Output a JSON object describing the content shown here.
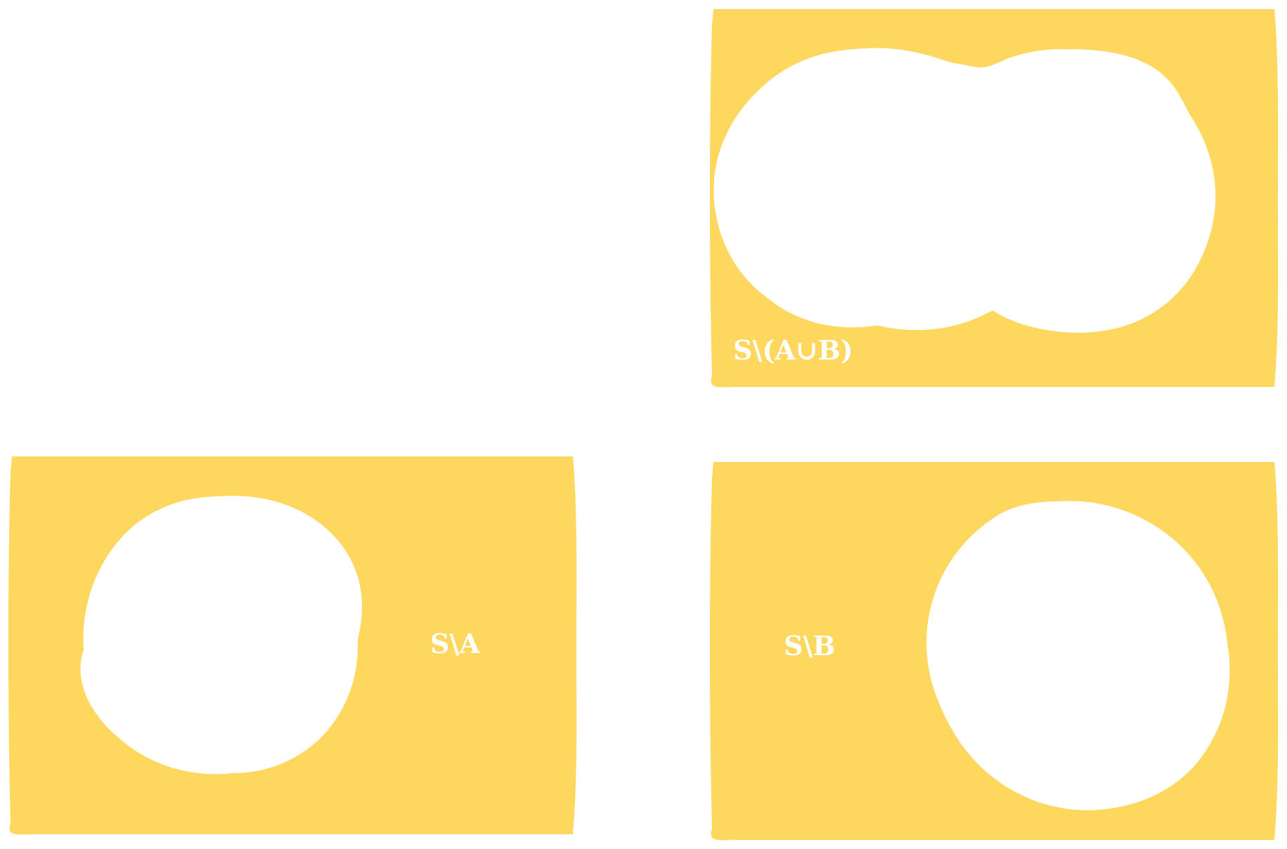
{
  "colors": {
    "background": "#ffffff",
    "region_fill": "#FED75F",
    "cutout_fill": "#ffffff",
    "label_color": "#ffffff"
  },
  "panels": {
    "complement_union": {
      "label": "S\\(A∪B)"
    },
    "complement_a": {
      "label": "S\\A"
    },
    "complement_b": {
      "label": "S\\B"
    }
  }
}
